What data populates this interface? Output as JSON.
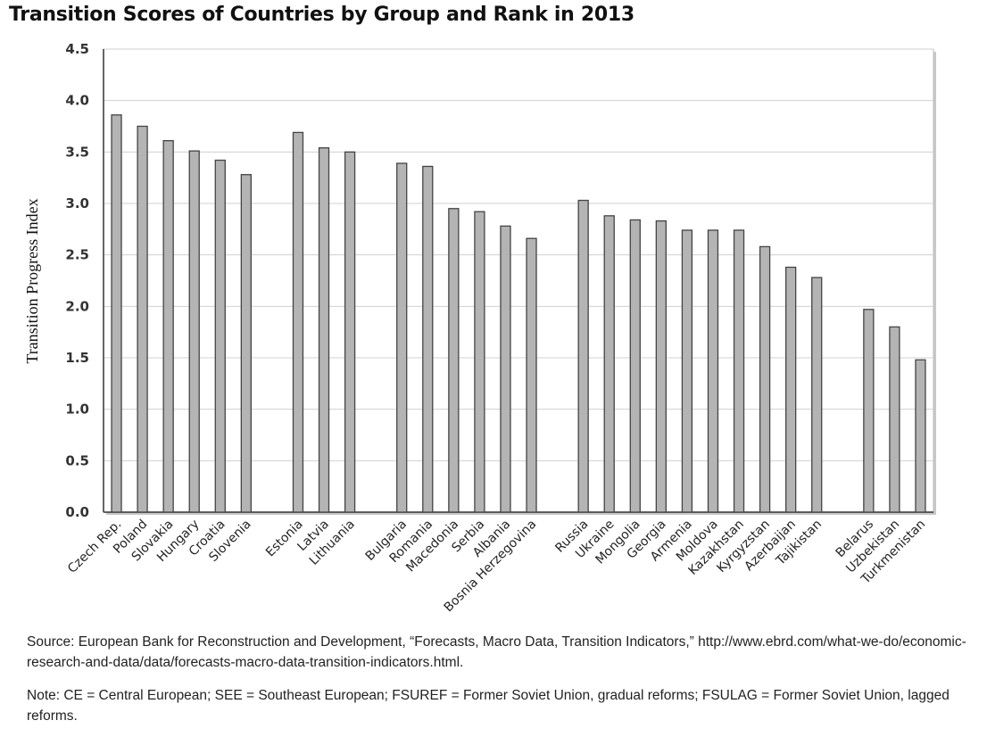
{
  "chart_data": {
    "type": "bar",
    "title": "Transition Scores of Countries by Group and Rank in 2013",
    "xlabel": "",
    "ylabel": "Transition Progress Index",
    "ylim": [
      0,
      4.5
    ],
    "yticks": [
      "0.0",
      "0.5",
      "1.0",
      "1.5",
      "2.0",
      "2.5",
      "3.0",
      "3.5",
      "4.0",
      "4.5"
    ],
    "grid": true,
    "groups": [
      {
        "categories": [
          "Czech Rep.",
          "Poland",
          "Slovakia",
          "Hungary",
          "Croatia",
          "Slovenia"
        ],
        "values": [
          3.86,
          3.75,
          3.61,
          3.51,
          3.42,
          3.28
        ]
      },
      {
        "categories": [
          "Estonia",
          "Latvia",
          "Lithuania"
        ],
        "values": [
          3.69,
          3.54,
          3.5
        ]
      },
      {
        "categories": [
          "Bulgaria",
          "Romania",
          "Macedonia",
          "Serbia",
          "Albania",
          "Bosnia Herzegovina"
        ],
        "values": [
          3.39,
          3.36,
          2.95,
          2.92,
          2.78,
          2.66
        ]
      },
      {
        "categories": [
          "Russia",
          "Ukraine",
          "Mongolia",
          "Georgia",
          "Armenia",
          "Moldova",
          "Kazakhstan",
          "Kyrgyzstan",
          "Azerbaijan",
          "Tajikistan"
        ],
        "values": [
          3.03,
          2.88,
          2.84,
          2.83,
          2.74,
          2.74,
          2.74,
          2.58,
          2.38,
          2.28
        ]
      },
      {
        "categories": [
          "Belarus",
          "Uzbekistan",
          "Turkmenistan"
        ],
        "values": [
          1.97,
          1.8,
          1.48
        ]
      }
    ],
    "bar_color": "#b4b4b4"
  },
  "notes": {
    "source": "Source: European Bank for Reconstruction and Development, “Forecasts, Macro Data, Transition Indicators,” http://www.ebrd.com/what-we-do/economic-research-and-data/data/forecasts-macro-data-transition-indicators.html.",
    "note": "Note: CE = Central European; SEE = Southeast European; FSUREF = Former Soviet Union, gradual reforms; FSULAG = Former Soviet Union, lagged reforms."
  }
}
